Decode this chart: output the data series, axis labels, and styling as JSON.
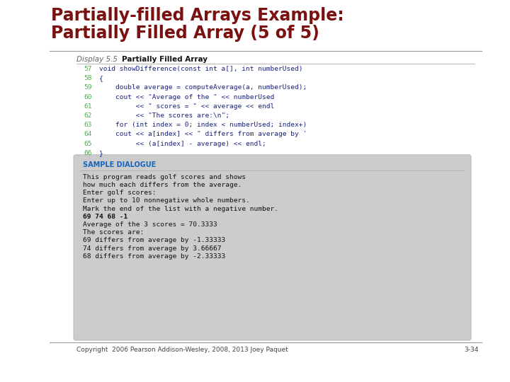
{
  "title_line1": "Partially-filled Arrays Example:",
  "title_line2": "Partially Filled Array (5 of 5)",
  "title_color": "#7B1010",
  "bg_color": "#FFFFFF",
  "display_label": "Display 5.5",
  "display_title": "Partially Filled Array",
  "code_lines": [
    {
      "num": "57",
      "text": "void showDifference(const int a[], int numberUsed)"
    },
    {
      "num": "58",
      "text": "{"
    },
    {
      "num": "59",
      "text": "    double average = computeAverage(a, numberUsed);"
    },
    {
      "num": "60",
      "text": "    cout << \"Average of the \" << numberUsed"
    },
    {
      "num": "61",
      "text": "         << \" scores = \" << average << endl"
    },
    {
      "num": "62",
      "text": "         << \"The scores are:\\n\";"
    },
    {
      "num": "63",
      "text": "    for (int index = 0; index < numberUsed; index+)"
    },
    {
      "num": "64",
      "text": "    cout << a[index] << \" differs from average by '"
    },
    {
      "num": "65",
      "text": "         << (a[index] - average) << endl;"
    },
    {
      "num": "66",
      "text": "}"
    }
  ],
  "code_num_color": "#4CAF50",
  "code_text_color": "#1A237E",
  "sample_label": "Sample Dialogue",
  "sample_label_color": "#1565C0",
  "sample_bg_color": "#CCCCCC",
  "sample_lines": [
    "This program reads golf scores and shows",
    "how much each differs from the average.",
    "Enter golf scores:",
    "Enter up to 10 nonnegative whole numbers.",
    "Mark the end of the list with a negative number.",
    "69 74 68 -1",
    "Average of the 3 scores = 70.3333",
    "The scores are:",
    "69 differs from average by -1.33333",
    "74 differs from average by 3.66667",
    "68 differs from average by -2.33333"
  ],
  "sample_bold_line": 5,
  "footer_text": "Copyright  2006 Pearson Addison-Wesley, 2008, 2013 Joey Paquet",
  "slide_num": "3-34",
  "footer_color": "#444444"
}
